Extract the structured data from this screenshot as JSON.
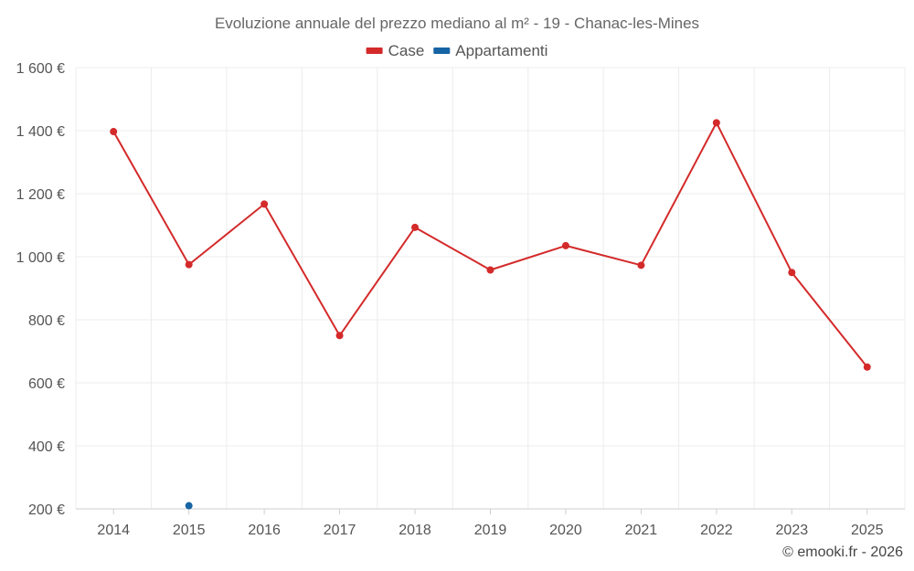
{
  "chart_data": {
    "type": "line",
    "title": "Evoluzione annuale del prezzo mediano al m² - 19 - Chanac-les-Mines",
    "categories": [
      "2014",
      "2015",
      "2016",
      "2017",
      "2018",
      "2019",
      "2020",
      "2021",
      "2022",
      "2023",
      "2025"
    ],
    "xlabel": "",
    "ylabel": "",
    "ylim": [
      200,
      1600
    ],
    "y_ticks": [
      200,
      400,
      600,
      800,
      1000,
      1200,
      1400,
      1600
    ],
    "y_tick_labels": [
      "200 €",
      "400 €",
      "600 €",
      "800 €",
      "1 000 €",
      "1 200 €",
      "1 400 €",
      "1 600 €"
    ],
    "grid": true,
    "legend_position": "top-center",
    "series": [
      {
        "name": "Case",
        "color": "#d42a2a",
        "values": [
          1397,
          975,
          1167,
          750,
          1093,
          958,
          1035,
          973,
          1425,
          950,
          650
        ]
      },
      {
        "name": "Appartamenti",
        "color": "#1764a4",
        "values": [
          null,
          210,
          null,
          null,
          null,
          null,
          null,
          null,
          null,
          null,
          null
        ]
      }
    ]
  },
  "credit": "© emooki.fr - 2026"
}
